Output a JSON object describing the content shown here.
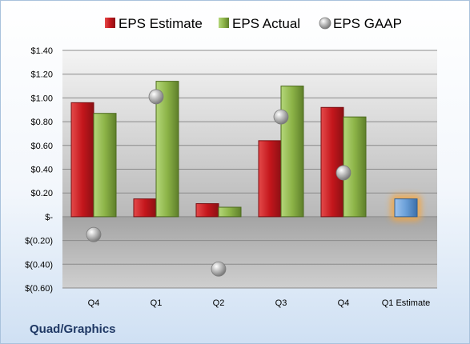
{
  "company": "Quad/Graphics",
  "chart_data": {
    "type": "bar",
    "categories": [
      "Q4",
      "Q1",
      "Q2",
      "Q3",
      "Q4",
      "Q1 Estimate"
    ],
    "series": [
      {
        "name": "EPS Estimate",
        "type": "bar",
        "color": "#c0282d",
        "values": [
          0.96,
          0.15,
          0.11,
          0.64,
          0.92,
          null
        ]
      },
      {
        "name": "EPS Actual",
        "type": "bar",
        "color": "#8cb347",
        "values": [
          0.87,
          1.14,
          0.08,
          1.1,
          0.84,
          null
        ]
      },
      {
        "name": "EPS GAAP",
        "type": "scatter",
        "color": "#a6a6a6",
        "values": [
          -0.15,
          1.01,
          -0.44,
          0.84,
          0.37,
          null
        ]
      },
      {
        "name": "",
        "type": "bar",
        "color": "#6a9fd8",
        "highlight": "#f5a640",
        "values": [
          null,
          null,
          null,
          null,
          null,
          0.15
        ]
      }
    ],
    "y_ticks": [
      {
        "value": 1.4,
        "label": "$1.40"
      },
      {
        "value": 1.2,
        "label": "$1.20"
      },
      {
        "value": 1.0,
        "label": "$1.00"
      },
      {
        "value": 0.8,
        "label": "$0.80"
      },
      {
        "value": 0.6,
        "label": "$0.60"
      },
      {
        "value": 0.4,
        "label": "$0.40"
      },
      {
        "value": 0.2,
        "label": "$0.20"
      },
      {
        "value": 0.0,
        "label": "$-"
      },
      {
        "value": -0.2,
        "label": "$(0.20)"
      },
      {
        "value": -0.4,
        "label": "$(0.40)"
      },
      {
        "value": -0.6,
        "label": "$(0.60)"
      }
    ],
    "ylim": [
      -0.6,
      1.4
    ],
    "grid": true,
    "legend_position": "top",
    "title": "",
    "xlabel": "",
    "ylabel": ""
  }
}
